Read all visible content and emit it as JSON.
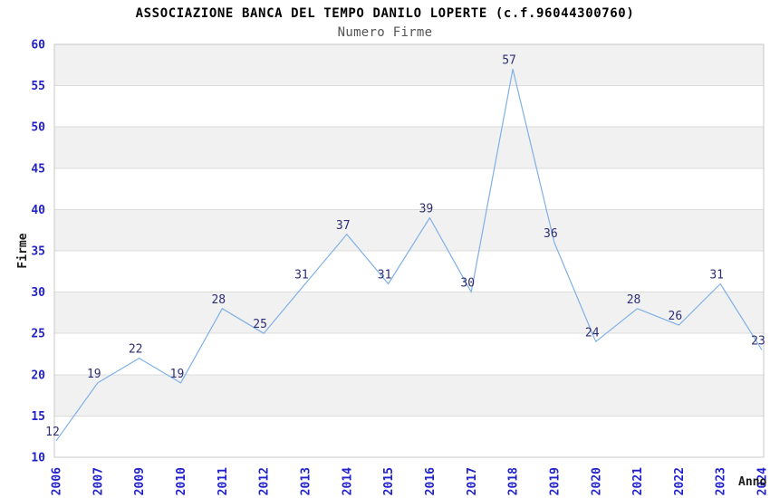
{
  "chart_data": {
    "type": "line",
    "title": "ASSOCIAZIONE BANCA DEL TEMPO DANILO LOPERTE (c.f.96044300760)",
    "subtitle": "Numero Firme",
    "xlabel": "Anno",
    "ylabel": "Firme",
    "categories": [
      "2006",
      "2007",
      "2009",
      "2010",
      "2011",
      "2012",
      "2013",
      "2014",
      "2015",
      "2016",
      "2017",
      "2018",
      "2019",
      "2020",
      "2021",
      "2022",
      "2023",
      "2024"
    ],
    "values": [
      12,
      19,
      22,
      19,
      28,
      25,
      31,
      37,
      31,
      39,
      30,
      57,
      36,
      24,
      28,
      26,
      31,
      23
    ],
    "ylim": [
      10,
      60
    ],
    "ytick_step": 5,
    "yticks": [
      10,
      15,
      20,
      25,
      30,
      35,
      40,
      45,
      50,
      55,
      60
    ],
    "grid": "horizontal-alternating-bands",
    "legend_position": "none",
    "point_labels_visible": true,
    "colors": {
      "line": "#7fb0e6",
      "tick_label": "#2222cc",
      "value_label": "#2d2d73",
      "band_gray": "#f1f1f1",
      "band_white": "#ffffff",
      "grid_line": "#dcdcdc",
      "plot_border": "#c8c8c8",
      "title": "#000000",
      "subtitle": "#555555",
      "axis_title": "#1a1a1a"
    }
  }
}
